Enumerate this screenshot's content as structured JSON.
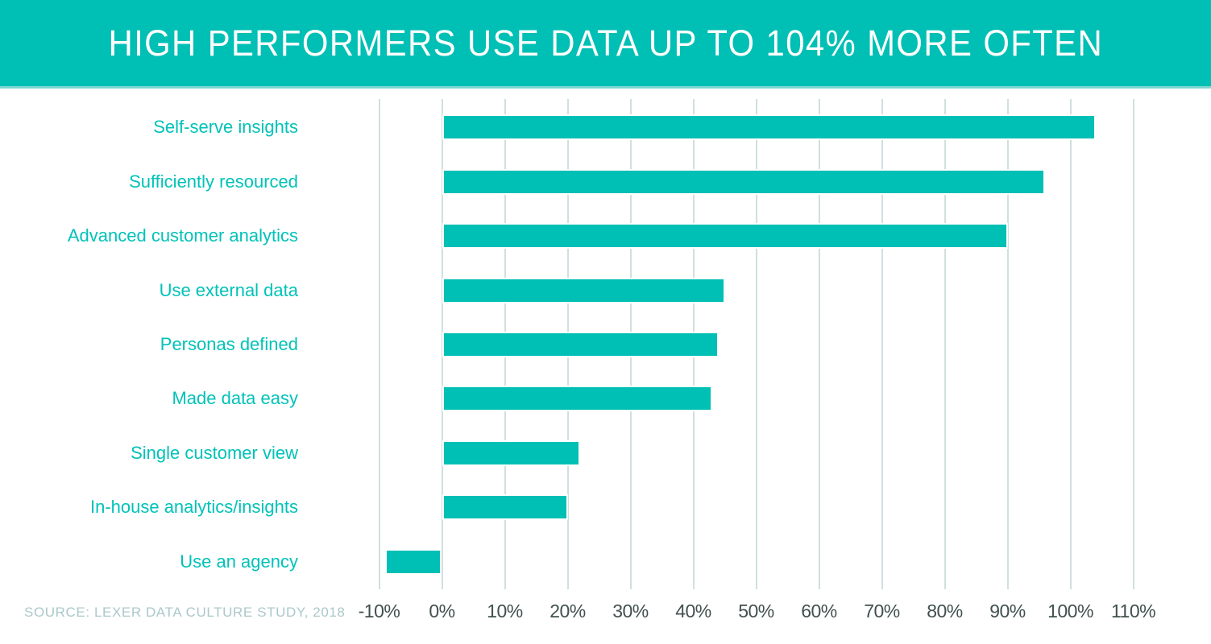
{
  "header": {
    "title": "HIGH PERFORMERS USE DATA UP TO 104% MORE OFTEN"
  },
  "footer": {
    "source": "SOURCE: LEXER DATA CULTURE STUDY, 2018"
  },
  "colors": {
    "accent": "#00bfb4",
    "category_label": "#00c2b8",
    "tick_label": "#41504f",
    "gridline": "#cfe0e0",
    "source_text": "#abc8c8",
    "banner_edge": "#7ed8d3",
    "bar_stroke": "#ffffff",
    "title_text": "#ffffff"
  },
  "chart_data": {
    "type": "bar",
    "orientation": "horizontal",
    "title": "HIGH PERFORMERS USE DATA UP TO 104% MORE OFTEN",
    "categories": [
      "Self-serve insights",
      "Sufficiently resourced",
      "Advanced customer analytics",
      "Use external data",
      "Personas defined",
      "Made data easy",
      "Single customer view",
      "In-house analytics/insights",
      "Use an agency"
    ],
    "values": [
      104,
      96,
      90,
      45,
      44,
      43,
      22,
      20,
      -9
    ],
    "unit": "%",
    "xlabel": "",
    "ylabel": "",
    "xlim": [
      -10,
      110
    ],
    "tick_values": [
      -10,
      0,
      10,
      20,
      30,
      40,
      50,
      60,
      70,
      80,
      90,
      100,
      110
    ],
    "tick_labels": [
      "-10%",
      "0%",
      "10%",
      "20%",
      "30%",
      "40%",
      "50%",
      "60%",
      "70%",
      "80%",
      "90%",
      "100%",
      "110%"
    ],
    "grid": true,
    "legend": false,
    "source": "SOURCE: LEXER DATA CULTURE STUDY, 2018"
  }
}
